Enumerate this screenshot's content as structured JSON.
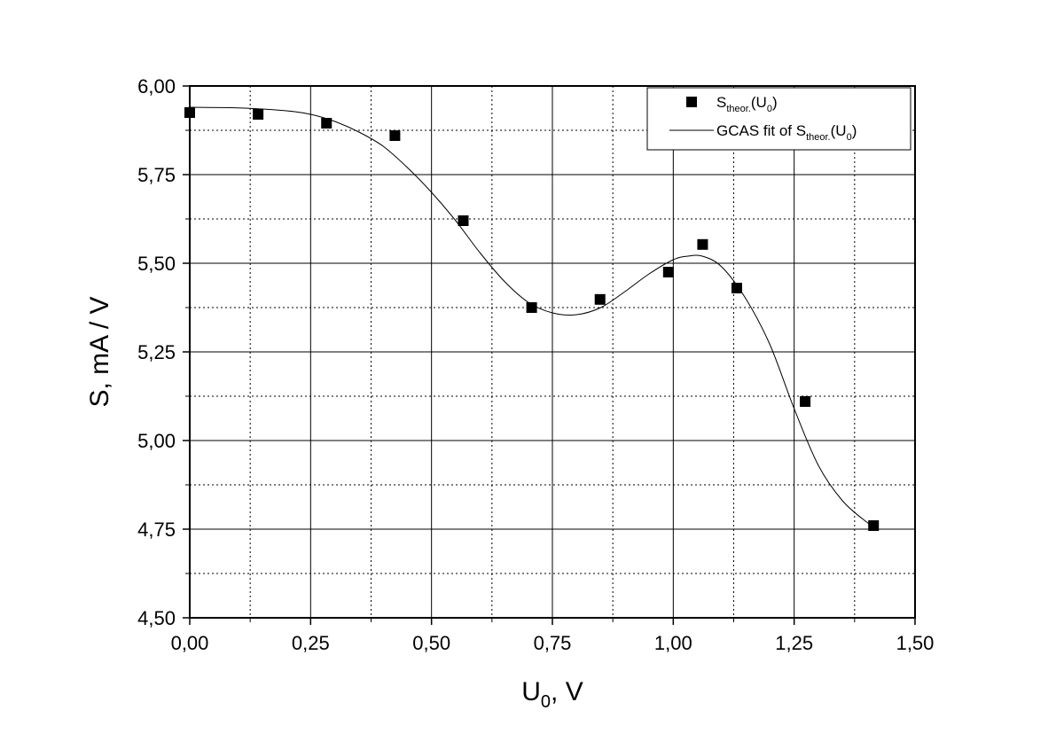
{
  "chart_data": {
    "type": "scatter",
    "xlabel": {
      "main": "U",
      "sub": "0",
      "rest": ", V"
    },
    "ylabel": "S, mA / V",
    "xlim": [
      0,
      1.5
    ],
    "ylim": [
      4.5,
      6.0
    ],
    "xticks": [
      "0,00",
      "0,25",
      "0,50",
      "0,75",
      "1,00",
      "1,25",
      "1,50"
    ],
    "yticks": [
      "4,50",
      "4,75",
      "5,00",
      "5,25",
      "5,50",
      "5,75",
      "6,00"
    ],
    "grid": true,
    "legend_position": "top-right",
    "series": [
      {
        "kind": "points",
        "legend": {
          "main": "S",
          "sub1": "theor.",
          "mid": "(U",
          "sub2": "0",
          "end": ")"
        },
        "color": "#000000",
        "x": [
          0.0,
          0.1414,
          0.2828,
          0.4243,
          0.5657,
          0.7071,
          0.8485,
          0.9899,
          1.0607,
          1.1314,
          1.2728,
          1.4142
        ],
        "y": [
          5.925,
          5.92,
          5.895,
          5.86,
          5.62,
          5.375,
          5.398,
          5.475,
          5.553,
          5.43,
          5.11,
          4.76
        ]
      },
      {
        "kind": "line",
        "legend": {
          "main": "GCAS fit of S",
          "sub1": "theor.",
          "mid": "(U",
          "sub2": "0",
          "end": ")"
        },
        "color": "#000000",
        "x": [
          0.0,
          0.1,
          0.2,
          0.25,
          0.3,
          0.35,
          0.4,
          0.45,
          0.5,
          0.55,
          0.6,
          0.65,
          0.7,
          0.75,
          0.8,
          0.85,
          0.9,
          0.95,
          1.0,
          1.03,
          1.06,
          1.1,
          1.15,
          1.2,
          1.25,
          1.3,
          1.35,
          1.4,
          1.414
        ],
        "y": [
          5.94,
          5.938,
          5.93,
          5.92,
          5.9,
          5.87,
          5.83,
          5.77,
          5.7,
          5.62,
          5.53,
          5.45,
          5.39,
          5.36,
          5.355,
          5.375,
          5.42,
          5.47,
          5.51,
          5.52,
          5.52,
          5.49,
          5.4,
          5.27,
          5.09,
          4.93,
          4.83,
          4.77,
          4.76
        ]
      }
    ]
  }
}
